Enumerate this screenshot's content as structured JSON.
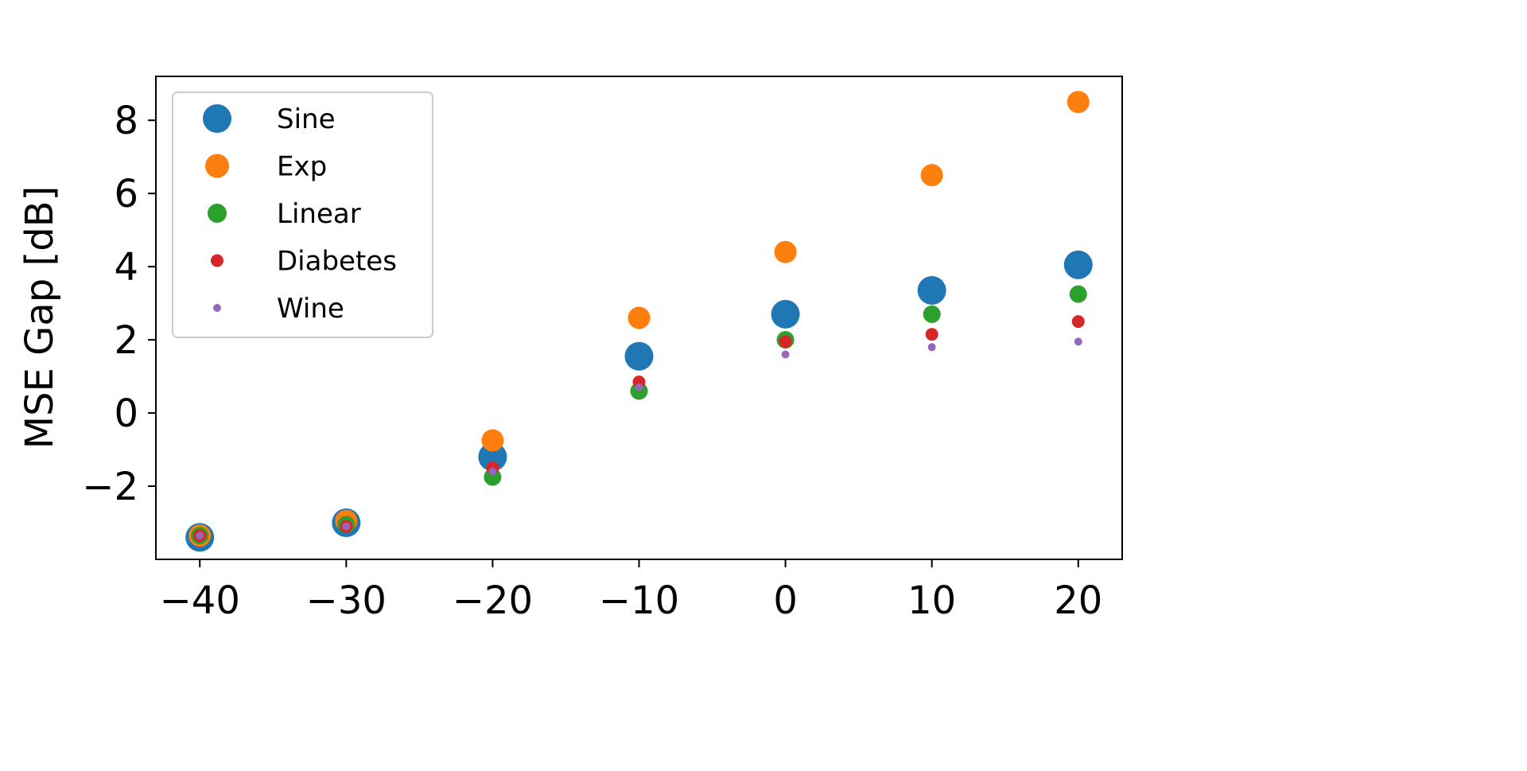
{
  "chart_data": {
    "type": "scatter",
    "title": "",
    "xlabel": "",
    "ylabel": "MSE Gap [dB]",
    "xlim": [
      -43,
      23
    ],
    "ylim": [
      -4.0,
      9.2
    ],
    "xticks": [
      -40,
      -30,
      -20,
      -10,
      0,
      10,
      20
    ],
    "xtick_labels": [
      "−40",
      "−30",
      "−20",
      "−10",
      "0",
      "10",
      "20"
    ],
    "yticks": [
      -2,
      0,
      2,
      4,
      6,
      8
    ],
    "ytick_labels": [
      "−2",
      "0",
      "2",
      "4",
      "6",
      "8"
    ],
    "grid": false,
    "legend_position": "upper-left",
    "x": [
      -40,
      -30,
      -20,
      -10,
      0,
      10,
      20
    ],
    "series": [
      {
        "name": "Sine",
        "color": "#1f77b4",
        "marker_size": "largest",
        "values": [
          -3.4,
          -3.0,
          -1.2,
          1.55,
          2.7,
          3.35,
          4.05
        ]
      },
      {
        "name": "Exp",
        "color": "#ff7f0e",
        "marker_size": "large",
        "values": [
          -3.35,
          -2.95,
          -0.75,
          2.6,
          4.4,
          6.5,
          8.5
        ]
      },
      {
        "name": "Linear",
        "color": "#2ca02c",
        "marker_size": "medium",
        "values": [
          -3.35,
          -3.05,
          -1.75,
          0.6,
          2.0,
          2.7,
          3.25
        ]
      },
      {
        "name": "Diabetes",
        "color": "#d62728",
        "marker_size": "small",
        "values": [
          -3.35,
          -3.1,
          -1.5,
          0.85,
          1.95,
          2.15,
          2.5
        ]
      },
      {
        "name": "Wine",
        "color": "#9467bd",
        "marker_size": "smallest",
        "values": [
          -3.35,
          -3.1,
          -1.6,
          0.7,
          1.6,
          1.8,
          1.95
        ]
      }
    ]
  }
}
